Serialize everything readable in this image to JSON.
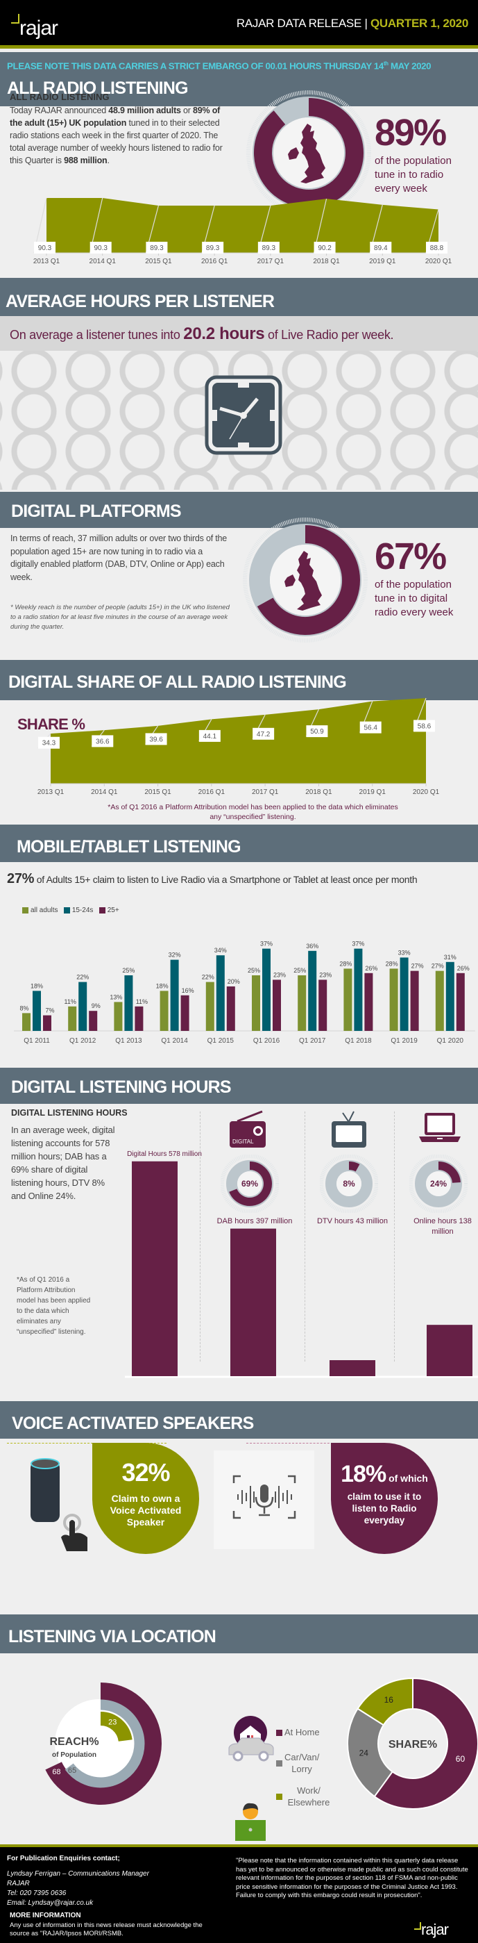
{
  "header": {
    "logo": "rajar",
    "release_label": "RAJAR DATA RELEASE",
    "separator": "|",
    "quarter": "QUARTER 1, 2020"
  },
  "embargo": {
    "before": "PLEASE NOTE THIS DATA CARRIES A STRICT EMBARGO OF 00.01 HOURS THURSDAY 14",
    "sup": "th",
    "after": " MAY 2020"
  },
  "all_radio": {
    "title": "ALL RADIO LISTENING",
    "subheading": "ALL RADIO LISTENING",
    "p": [
      "Today RAJAR announced ",
      "48.9 million adults",
      " or ",
      "89% of the adult (15+) UK population",
      " tuned in to their selected radio stations each week in the first quarter of 2020. The total average number of weekly hours listened to radio for this Quarter is ",
      "988 million",
      "."
    ],
    "big_pct": "89%",
    "caption": "of the population tune in to radio every week",
    "reach_fraction": 0.89
  },
  "avg_hours": {
    "title": "AVERAGE HOURS PER LISTENER",
    "before": "On average a listener tunes into ",
    "value": "20.2 hours",
    "after": " of Live Radio per week."
  },
  "digital_platforms": {
    "title": "DIGITAL PLATFORMS",
    "paragraph": "In terms of reach, 37 million adults or over two thirds of the population aged 15+ are now tuning in to radio via a digitally enabled platform (DAB, DTV, Online or App) each week.",
    "footnote": "* Weekly reach is the number of people (adults 15+) in the UK who listened to a radio station for at least five minutes in the course of an average week during the quarter.",
    "big_pct": "67%",
    "caption": "of the population tune in to digital radio every week",
    "reach_fraction": 0.67
  },
  "digital_share": {
    "title": "DIGITAL SHARE OF ALL RADIO LISTENING",
    "label": "SHARE %",
    "footnote_1": "*As of Q1 2016 a Platform Attribution model has been applied to the data which eliminates",
    "footnote_2": "any “unspecified” listening."
  },
  "mobile": {
    "title": "MOBILE/TABLET LISTENING",
    "pct": "27%",
    "statement": " of Adults 15+ claim to listen to Live Radio via a Smartphone or Tablet at least once per month"
  },
  "digital_hours": {
    "title": "DIGITAL LISTENING HOURS",
    "subheading": "DIGITAL LISTENING HOURS",
    "paragraph": "In an average week, digital listening accounts for 578 million hours; DAB has a 69% share of digital listening hours, DTV 8% and Online 24%.",
    "footnote": "*As of Q1 2016 a Platform Attribution model has been applied to the data which eliminates any “unspecified” listening.",
    "radio_icon_label": "DIGITAL",
    "donuts": [
      {
        "label": "69%",
        "fraction": 0.69
      },
      {
        "label": "8%",
        "fraction": 0.08
      },
      {
        "label": "24%",
        "fraction": 0.24
      }
    ]
  },
  "voice": {
    "title": "VOICE ACTIVATED SPEAKERS",
    "own_pct": "32%",
    "own_text": "Claim to own a Voice Activated Speaker",
    "use_pct": "18%",
    "use_of_which": " of which",
    "use_text": "claim to use it to listen to Radio everyday"
  },
  "location": {
    "title": "LISTENING VIA LOCATION",
    "reach_title": "REACH%",
    "reach_sub": "of Population",
    "share_title": "SHARE%",
    "legend": [
      "At Home",
      "Car/Van/ Lorry",
      "Work/ Elsewhere"
    ]
  },
  "footer": {
    "enquiries": "For Publication Enquiries contact;",
    "contact_name": "Lyndsay Ferrigan – Communications Manager",
    "org": "RAJAR",
    "tel": "Tel: 020 7395 0636",
    "email": "Email: Lyndsay@rajar.co.uk",
    "more_info": "MORE INFORMATION",
    "source_note": "Any use of information in this news release must acknowledge the source as \"RAJAR/Ipsos MORI/RSMB.",
    "legal": "\"Please note that the information contained within this quarterly data release has yet to be announced or otherwise made public and as such could constitute relevant information for the purposes of section 118 of FSMA and non-public price sensitive information for the purposes of the Criminal Justice Act 1993. Failure to comply with this embargo could result in prosecution\".",
    "logo": "rajar"
  },
  "colors": {
    "purple": "#662046",
    "olive": "#8c9400",
    "teal": "#005f6e",
    "green": "#7d9130",
    "band": "#5d6e7a",
    "embargo": "#4fd0e0",
    "ring_gray": "#bcc6cc",
    "share_gray": "#808080"
  },
  "chart_data": [
    {
      "id": "all_radio_reach",
      "type": "area",
      "title": "",
      "categories": [
        "2013 Q1",
        "2014 Q1",
        "2015 Q1",
        "2016 Q1",
        "2017 Q1",
        "2018 Q1",
        "2019 Q1",
        "2020 Q1"
      ],
      "values": [
        90.3,
        90.3,
        89.3,
        89.3,
        89.3,
        90.2,
        89.4,
        88.8
      ],
      "labels": [
        "90.3",
        "90.3",
        "89.3",
        "89.3",
        "89.3",
        "90.2",
        "89.4",
        "88.8"
      ]
    },
    {
      "id": "digital_share",
      "type": "area",
      "title": "SHARE %",
      "categories": [
        "2013 Q1",
        "2014 Q1",
        "2015 Q1",
        "2016 Q1",
        "2017 Q1",
        "2018 Q1",
        "2019 Q1",
        "2020 Q1"
      ],
      "values": [
        34.3,
        36.6,
        39.6,
        44.1,
        47.2,
        50.9,
        56.4,
        58.6
      ],
      "labels": [
        "34.3",
        "36.6",
        "39.6",
        "44.1",
        "47.2",
        "50.9",
        "56.4",
        "58.6"
      ]
    },
    {
      "id": "mobile_tablet",
      "type": "bar",
      "categories": [
        "Q1 2011",
        "Q1 2012",
        "Q1 2013",
        "Q1 2014",
        "Q1 2015",
        "Q1 2016",
        "Q1 2017",
        "Q1 2018",
        "Q1 2019",
        "Q1 2020"
      ],
      "legend": "top-left",
      "series": [
        {
          "name": "all adults",
          "values": [
            8,
            11,
            13,
            18,
            22,
            25,
            25,
            28,
            28,
            27
          ]
        },
        {
          "name": "15-24s",
          "values": [
            18,
            22,
            25,
            32,
            34,
            37,
            36,
            37,
            33,
            31
          ]
        },
        {
          "name": "25+",
          "values": [
            7,
            9,
            11,
            16,
            20,
            23,
            23,
            26,
            27,
            26
          ]
        }
      ]
    },
    {
      "id": "digital_hours",
      "type": "bar",
      "categories": [
        "Digital Hours 578 million",
        "DAB hours 397 million",
        "DTV hours 43 million",
        "Online hours 138 million"
      ],
      "values": [
        578,
        397,
        43,
        138
      ],
      "unit": "million hours"
    },
    {
      "id": "location_reach",
      "type": "pie",
      "title": "REACH% of Population",
      "categories": [
        "At Home",
        "Car/Van/Lorry",
        "Work/Elsewhere"
      ],
      "values": [
        68,
        65,
        23
      ],
      "labels": [
        "68",
        "65",
        "23"
      ]
    },
    {
      "id": "location_share",
      "type": "pie",
      "title": "SHARE%",
      "categories": [
        "At Home",
        "Car/Van/Lorry",
        "Work/Elsewhere"
      ],
      "values": [
        60,
        24,
        16
      ],
      "labels": [
        "60",
        "24",
        "16"
      ]
    }
  ]
}
